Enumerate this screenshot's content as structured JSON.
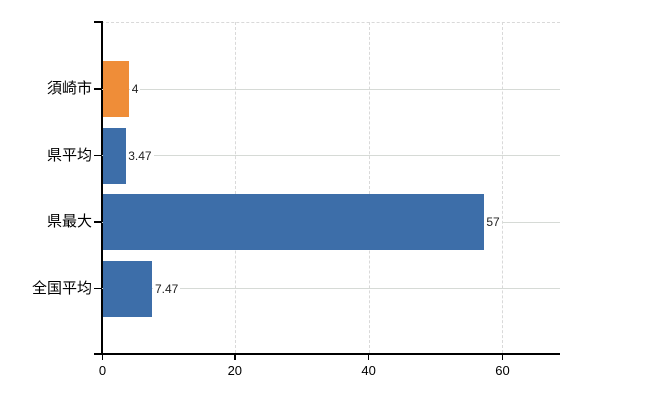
{
  "chart_data": {
    "type": "bar",
    "orientation": "horizontal",
    "title": "",
    "categories": [
      "須崎市",
      "県平均",
      "県最大",
      "全国平均"
    ],
    "values": [
      4,
      3.47,
      57,
      7.47
    ],
    "value_labels": [
      "4",
      "3.47",
      "57",
      "7.47"
    ],
    "bar_colors": [
      "#ef8d38",
      "#3d6ea9",
      "#3d6ea9",
      "#3d6ea9"
    ],
    "xlim": [
      0,
      68.6
    ],
    "x_ticks": [
      0,
      20,
      40,
      60
    ],
    "x_tick_labels": [
      "0",
      "20",
      "40",
      "60"
    ],
    "legend": "none",
    "grid": {
      "vertical": "dashed",
      "horizontal_category_lines": true,
      "top_border": "dashed"
    }
  },
  "colors": {
    "background": "#ffffff",
    "axis": "#000000",
    "gridline": "#d9d9d9",
    "bar_blue": "#3d6ea9",
    "bar_orange": "#ef8d38",
    "text": "#000000"
  }
}
